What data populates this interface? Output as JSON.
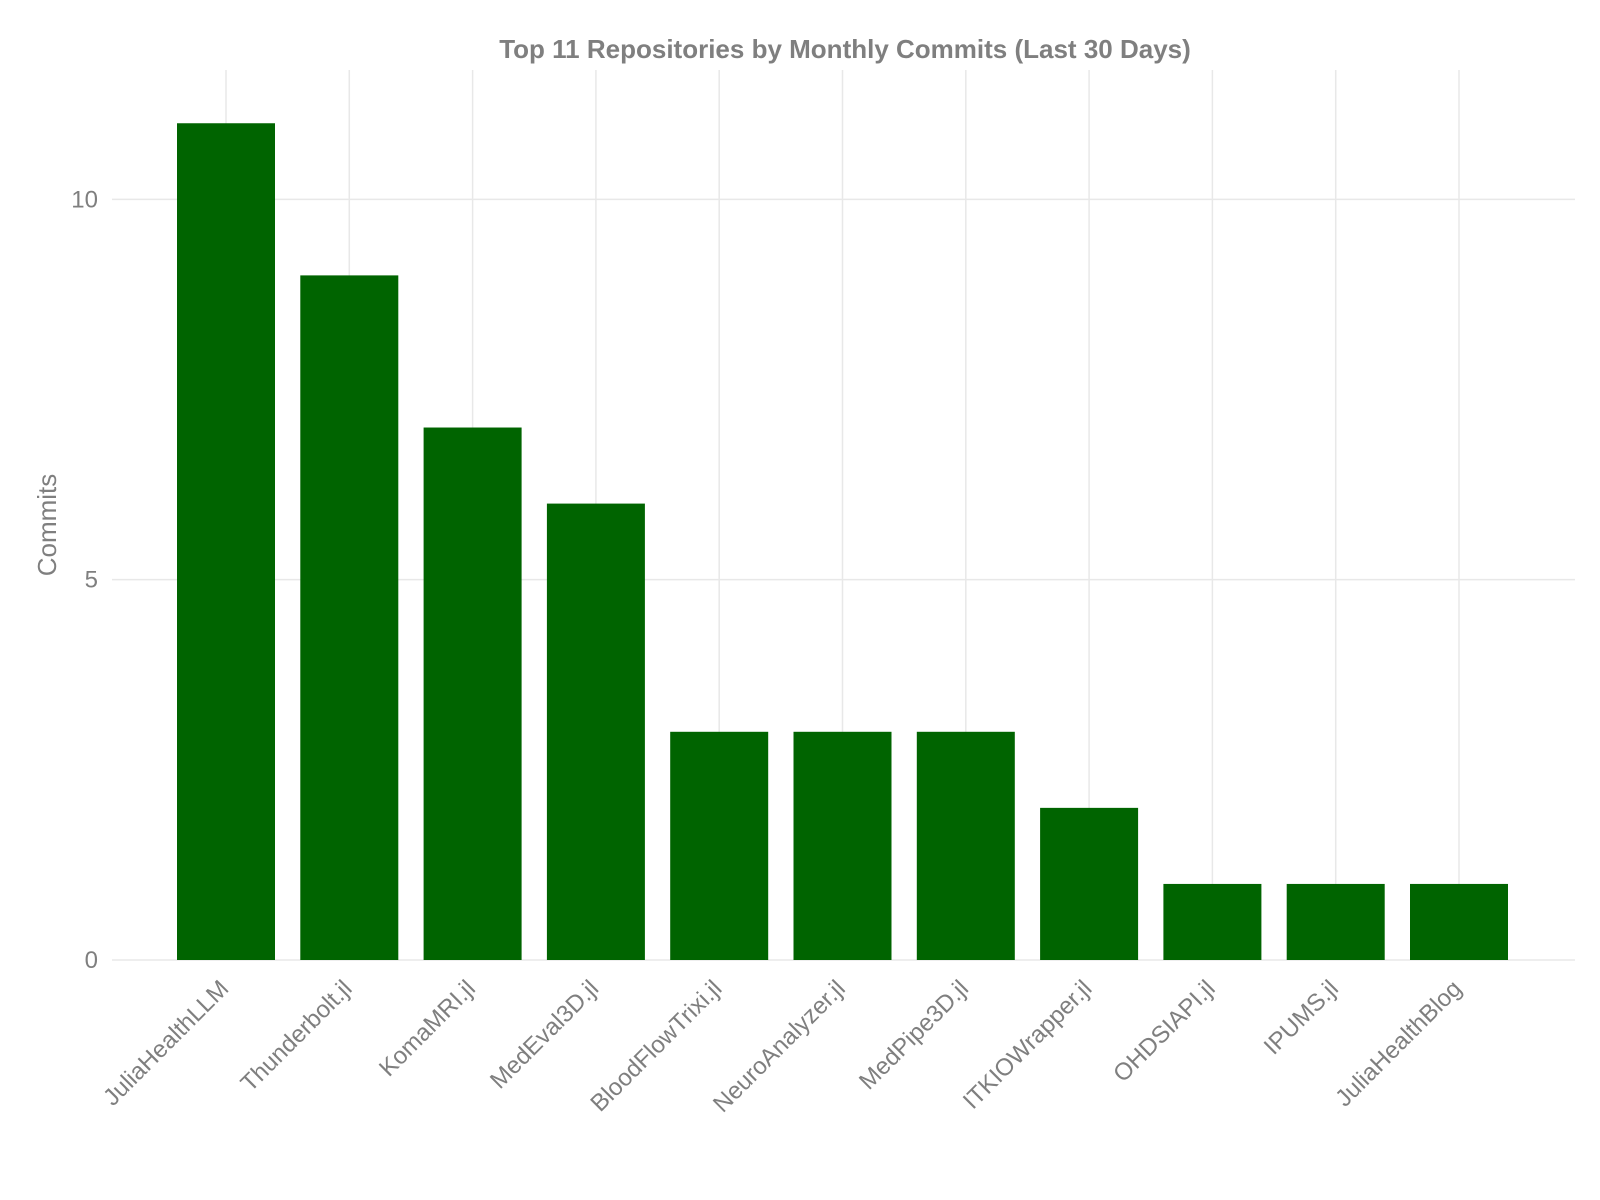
{
  "chart_data": {
    "type": "bar",
    "title": "Top 11 Repositories by Monthly Commits (Last 30 Days)",
    "xlabel": "",
    "ylabel": "Commits",
    "categories": [
      "JuliaHealthLLM",
      "Thunderbolt.jl",
      "KomaMRI.jl",
      "MedEval3D.jl",
      "BloodFlowTrixi.jl",
      "NeuroAnalyzer.jl",
      "MedPipe3D.jl",
      "ITKIOWrapper.jl",
      "OHDSIAPI.jl",
      "IPUMS.jl",
      "JuliaHealthBlog"
    ],
    "values": [
      11,
      9,
      7,
      6,
      3,
      3,
      3,
      2,
      1,
      1,
      1
    ],
    "ylim": [
      0,
      11.7
    ],
    "yticks": [
      0,
      5,
      10
    ],
    "grid": true,
    "legend": "none",
    "bar_color": "#006400",
    "text_color": "#7f7f7f",
    "grid_color": "#e8e8e8"
  }
}
